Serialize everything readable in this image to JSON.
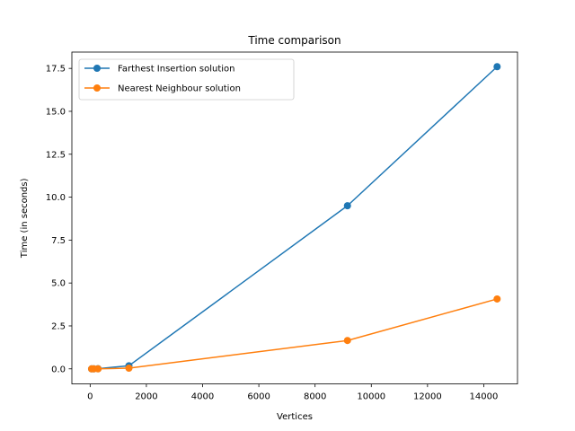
{
  "chart_data": {
    "type": "line",
    "title": "Time comparison",
    "xlabel": "Vertices",
    "ylabel": "Time (in seconds)",
    "xlim": [
      -650,
      15200
    ],
    "ylim": [
      -0.88,
      18.45
    ],
    "xticks": [
      0,
      2000,
      4000,
      6000,
      8000,
      10000,
      12000,
      14000
    ],
    "yticks": [
      0.0,
      2.5,
      5.0,
      7.5,
      10.0,
      12.5,
      15.0,
      17.5
    ],
    "grid": false,
    "legend_position": "upper-left",
    "series": [
      {
        "name": "Farthest Insertion solution",
        "color": "#1f77b4",
        "marker": "circle",
        "x": [
          52,
          130,
          280,
          1379,
          9152,
          14475
        ],
        "y": [
          0.0,
          0.0,
          0.01,
          0.18,
          9.5,
          17.6
        ]
      },
      {
        "name": "Nearest Neighbour solution",
        "color": "#ff7f0e",
        "marker": "circle",
        "x": [
          52,
          130,
          280,
          1379,
          9152,
          14475
        ],
        "y": [
          0.0,
          0.0,
          0.0,
          0.04,
          1.65,
          4.07
        ]
      }
    ]
  }
}
